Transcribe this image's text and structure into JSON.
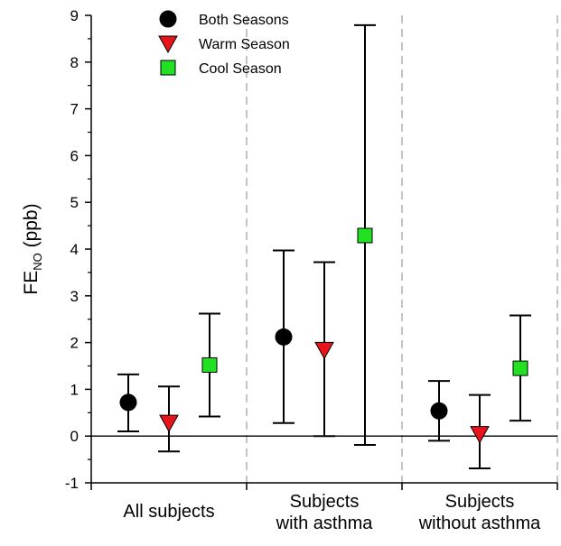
{
  "chart_data": {
    "type": "scatter",
    "subtype": "point-with-error-bars",
    "title": "",
    "ylabel": {
      "main": "FE",
      "subscript": "NO",
      "unit": " (ppb)"
    },
    "ylim": [
      -1,
      9
    ],
    "yticks": [
      -1,
      0,
      1,
      2,
      3,
      4,
      5,
      6,
      7,
      8,
      9
    ],
    "zero_line": true,
    "category_separators": "dashed",
    "legend_position": "top-left",
    "categories": [
      {
        "lines": [
          "All subjects"
        ]
      },
      {
        "lines": [
          "Subjects",
          "with asthma"
        ]
      },
      {
        "lines": [
          "Subjects",
          "without asthma"
        ]
      }
    ],
    "series": [
      {
        "name": "Both Seasons",
        "marker": "circle",
        "color": "#000000",
        "values": [
          0.72,
          2.12,
          0.54
        ],
        "lower": [
          0.1,
          0.28,
          -0.1
        ],
        "upper": [
          1.32,
          3.97,
          1.18
        ]
      },
      {
        "name": "Warm Season",
        "marker": "triangle-down",
        "color": "#e8141c",
        "values": [
          0.29,
          1.85,
          0.05
        ],
        "lower": [
          -0.33,
          0.0,
          -0.69
        ],
        "upper": [
          1.06,
          3.72,
          0.88
        ]
      },
      {
        "name": "Cool Season",
        "marker": "square",
        "color": "#22e022",
        "values": [
          1.52,
          4.29,
          1.45
        ],
        "lower": [
          0.42,
          -0.19,
          0.33
        ],
        "upper": [
          2.62,
          8.79,
          2.58
        ]
      }
    ]
  }
}
